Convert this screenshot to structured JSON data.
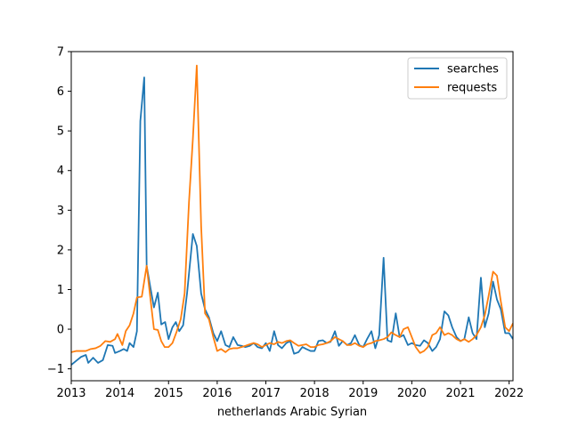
{
  "chart_data": {
    "type": "line",
    "title": "",
    "xlabel": "netherlands Arabic  Syrian",
    "ylabel": "",
    "xlim": [
      2013.0,
      2022.08
    ],
    "ylim": [
      -1.3,
      7.0
    ],
    "x_ticks": [
      2013,
      2014,
      2015,
      2016,
      2017,
      2018,
      2019,
      2020,
      2021,
      2022
    ],
    "x_tick_labels": [
      "2013",
      "2014",
      "2015",
      "2016",
      "2017",
      "2018",
      "2019",
      "2020",
      "2021",
      "2022"
    ],
    "y_ticks": [
      -1,
      0,
      1,
      2,
      3,
      4,
      5,
      6,
      7
    ],
    "y_tick_labels": [
      "−1",
      "0",
      "1",
      "2",
      "3",
      "4",
      "5",
      "6",
      "7"
    ],
    "grid": false,
    "legend_position": "top-right",
    "colors": {
      "searches": "#1f77b4",
      "requests": "#ff7f0e"
    },
    "series": [
      {
        "name": "searches",
        "points": [
          [
            2013.0,
            -0.9
          ],
          [
            2013.1,
            -0.8
          ],
          [
            2013.2,
            -0.7
          ],
          [
            2013.3,
            -0.65
          ],
          [
            2013.35,
            -0.85
          ],
          [
            2013.45,
            -0.72
          ],
          [
            2013.55,
            -0.85
          ],
          [
            2013.65,
            -0.78
          ],
          [
            2013.75,
            -0.4
          ],
          [
            2013.85,
            -0.42
          ],
          [
            2013.9,
            -0.6
          ],
          [
            2014.0,
            -0.55
          ],
          [
            2014.08,
            -0.5
          ],
          [
            2014.15,
            -0.55
          ],
          [
            2014.2,
            -0.35
          ],
          [
            2014.28,
            -0.45
          ],
          [
            2014.35,
            -0.05
          ],
          [
            2014.42,
            5.25
          ],
          [
            2014.5,
            6.35
          ],
          [
            2014.55,
            1.6
          ],
          [
            2014.62,
            1.1
          ],
          [
            2014.7,
            0.55
          ],
          [
            2014.78,
            0.92
          ],
          [
            2014.85,
            0.12
          ],
          [
            2014.93,
            0.18
          ],
          [
            2015.0,
            -0.25
          ],
          [
            2015.08,
            0.05
          ],
          [
            2015.15,
            0.18
          ],
          [
            2015.22,
            -0.05
          ],
          [
            2015.3,
            0.1
          ],
          [
            2015.38,
            0.9
          ],
          [
            2015.5,
            2.4
          ],
          [
            2015.58,
            2.1
          ],
          [
            2015.67,
            0.9
          ],
          [
            2015.75,
            0.5
          ],
          [
            2015.83,
            0.3
          ],
          [
            2015.92,
            -0.1
          ],
          [
            2016.0,
            -0.3
          ],
          [
            2016.08,
            -0.05
          ],
          [
            2016.17,
            -0.4
          ],
          [
            2016.25,
            -0.45
          ],
          [
            2016.33,
            -0.2
          ],
          [
            2016.42,
            -0.4
          ],
          [
            2016.5,
            -0.42
          ],
          [
            2016.58,
            -0.45
          ],
          [
            2016.67,
            -0.42
          ],
          [
            2016.75,
            -0.35
          ],
          [
            2016.83,
            -0.45
          ],
          [
            2016.92,
            -0.48
          ],
          [
            2017.0,
            -0.35
          ],
          [
            2017.08,
            -0.55
          ],
          [
            2017.17,
            -0.05
          ],
          [
            2017.25,
            -0.4
          ],
          [
            2017.33,
            -0.48
          ],
          [
            2017.42,
            -0.35
          ],
          [
            2017.5,
            -0.3
          ],
          [
            2017.58,
            -0.62
          ],
          [
            2017.67,
            -0.58
          ],
          [
            2017.75,
            -0.45
          ],
          [
            2017.83,
            -0.5
          ],
          [
            2017.92,
            -0.55
          ],
          [
            2018.0,
            -0.55
          ],
          [
            2018.08,
            -0.3
          ],
          [
            2018.17,
            -0.28
          ],
          [
            2018.25,
            -0.35
          ],
          [
            2018.33,
            -0.32
          ],
          [
            2018.42,
            -0.05
          ],
          [
            2018.5,
            -0.42
          ],
          [
            2018.58,
            -0.3
          ],
          [
            2018.67,
            -0.4
          ],
          [
            2018.75,
            -0.35
          ],
          [
            2018.83,
            -0.15
          ],
          [
            2018.92,
            -0.4
          ],
          [
            2019.0,
            -0.45
          ],
          [
            2019.08,
            -0.25
          ],
          [
            2019.17,
            -0.05
          ],
          [
            2019.25,
            -0.48
          ],
          [
            2019.33,
            -0.15
          ],
          [
            2019.42,
            1.8
          ],
          [
            2019.5,
            -0.28
          ],
          [
            2019.58,
            -0.32
          ],
          [
            2019.67,
            0.4
          ],
          [
            2019.75,
            -0.2
          ],
          [
            2019.83,
            -0.15
          ],
          [
            2019.92,
            -0.4
          ],
          [
            2020.0,
            -0.35
          ],
          [
            2020.08,
            -0.4
          ],
          [
            2020.17,
            -0.42
          ],
          [
            2020.25,
            -0.28
          ],
          [
            2020.33,
            -0.35
          ],
          [
            2020.42,
            -0.55
          ],
          [
            2020.5,
            -0.45
          ],
          [
            2020.58,
            -0.25
          ],
          [
            2020.67,
            0.45
          ],
          [
            2020.75,
            0.35
          ],
          [
            2020.83,
            0.05
          ],
          [
            2020.92,
            -0.2
          ],
          [
            2021.0,
            -0.3
          ],
          [
            2021.08,
            -0.25
          ],
          [
            2021.17,
            0.3
          ],
          [
            2021.25,
            -0.1
          ],
          [
            2021.33,
            -0.25
          ],
          [
            2021.42,
            1.3
          ],
          [
            2021.5,
            0.05
          ],
          [
            2021.58,
            0.4
          ],
          [
            2021.67,
            1.2
          ],
          [
            2021.75,
            0.75
          ],
          [
            2021.83,
            0.5
          ],
          [
            2021.92,
            -0.1
          ],
          [
            2022.0,
            -0.1
          ],
          [
            2022.08,
            -0.25
          ]
        ]
      },
      {
        "name": "requests",
        "points": [
          [
            2013.0,
            -0.58
          ],
          [
            2013.1,
            -0.55
          ],
          [
            2013.2,
            -0.55
          ],
          [
            2013.3,
            -0.55
          ],
          [
            2013.4,
            -0.5
          ],
          [
            2013.5,
            -0.48
          ],
          [
            2013.6,
            -0.42
          ],
          [
            2013.7,
            -0.3
          ],
          [
            2013.8,
            -0.32
          ],
          [
            2013.9,
            -0.25
          ],
          [
            2013.95,
            -0.12
          ],
          [
            2014.05,
            -0.4
          ],
          [
            2014.12,
            -0.05
          ],
          [
            2014.2,
            0.1
          ],
          [
            2014.28,
            0.4
          ],
          [
            2014.35,
            0.8
          ],
          [
            2014.45,
            0.82
          ],
          [
            2014.55,
            1.6
          ],
          [
            2014.62,
            0.85
          ],
          [
            2014.7,
            0.0
          ],
          [
            2014.78,
            -0.02
          ],
          [
            2014.85,
            -0.3
          ],
          [
            2014.92,
            -0.45
          ],
          [
            2015.0,
            -0.45
          ],
          [
            2015.08,
            -0.35
          ],
          [
            2015.17,
            -0.05
          ],
          [
            2015.25,
            0.25
          ],
          [
            2015.33,
            0.9
          ],
          [
            2015.42,
            3.2
          ],
          [
            2015.5,
            4.8
          ],
          [
            2015.58,
            6.65
          ],
          [
            2015.67,
            2.6
          ],
          [
            2015.75,
            0.4
          ],
          [
            2015.83,
            0.25
          ],
          [
            2015.92,
            -0.2
          ],
          [
            2016.0,
            -0.55
          ],
          [
            2016.08,
            -0.5
          ],
          [
            2016.17,
            -0.58
          ],
          [
            2016.25,
            -0.5
          ],
          [
            2016.33,
            -0.48
          ],
          [
            2016.42,
            -0.48
          ],
          [
            2016.5,
            -0.45
          ],
          [
            2016.58,
            -0.42
          ],
          [
            2016.67,
            -0.38
          ],
          [
            2016.75,
            -0.35
          ],
          [
            2016.83,
            -0.38
          ],
          [
            2016.92,
            -0.45
          ],
          [
            2017.0,
            -0.4
          ],
          [
            2017.08,
            -0.35
          ],
          [
            2017.17,
            -0.38
          ],
          [
            2017.25,
            -0.32
          ],
          [
            2017.33,
            -0.35
          ],
          [
            2017.42,
            -0.3
          ],
          [
            2017.5,
            -0.28
          ],
          [
            2017.58,
            -0.35
          ],
          [
            2017.67,
            -0.42
          ],
          [
            2017.75,
            -0.4
          ],
          [
            2017.83,
            -0.38
          ],
          [
            2017.92,
            -0.45
          ],
          [
            2018.0,
            -0.45
          ],
          [
            2018.08,
            -0.4
          ],
          [
            2018.17,
            -0.38
          ],
          [
            2018.25,
            -0.35
          ],
          [
            2018.33,
            -0.3
          ],
          [
            2018.42,
            -0.2
          ],
          [
            2018.5,
            -0.25
          ],
          [
            2018.58,
            -0.3
          ],
          [
            2018.67,
            -0.4
          ],
          [
            2018.75,
            -0.4
          ],
          [
            2018.83,
            -0.35
          ],
          [
            2018.92,
            -0.42
          ],
          [
            2019.0,
            -0.45
          ],
          [
            2019.08,
            -0.38
          ],
          [
            2019.17,
            -0.35
          ],
          [
            2019.25,
            -0.3
          ],
          [
            2019.33,
            -0.28
          ],
          [
            2019.42,
            -0.25
          ],
          [
            2019.5,
            -0.2
          ],
          [
            2019.58,
            -0.08
          ],
          [
            2019.67,
            -0.15
          ],
          [
            2019.75,
            -0.2
          ],
          [
            2019.83,
            0.0
          ],
          [
            2019.92,
            0.05
          ],
          [
            2020.0,
            -0.2
          ],
          [
            2020.08,
            -0.45
          ],
          [
            2020.17,
            -0.6
          ],
          [
            2020.25,
            -0.55
          ],
          [
            2020.33,
            -0.45
          ],
          [
            2020.42,
            -0.15
          ],
          [
            2020.5,
            -0.1
          ],
          [
            2020.58,
            0.05
          ],
          [
            2020.67,
            -0.15
          ],
          [
            2020.75,
            -0.1
          ],
          [
            2020.83,
            -0.15
          ],
          [
            2020.92,
            -0.25
          ],
          [
            2021.0,
            -0.3
          ],
          [
            2021.08,
            -0.25
          ],
          [
            2021.17,
            -0.32
          ],
          [
            2021.25,
            -0.25
          ],
          [
            2021.33,
            -0.15
          ],
          [
            2021.42,
            0.05
          ],
          [
            2021.5,
            0.35
          ],
          [
            2021.58,
            0.85
          ],
          [
            2021.67,
            1.45
          ],
          [
            2021.75,
            1.35
          ],
          [
            2021.83,
            0.7
          ],
          [
            2021.92,
            0.05
          ],
          [
            2022.0,
            -0.05
          ],
          [
            2022.08,
            0.15
          ]
        ]
      }
    ]
  }
}
